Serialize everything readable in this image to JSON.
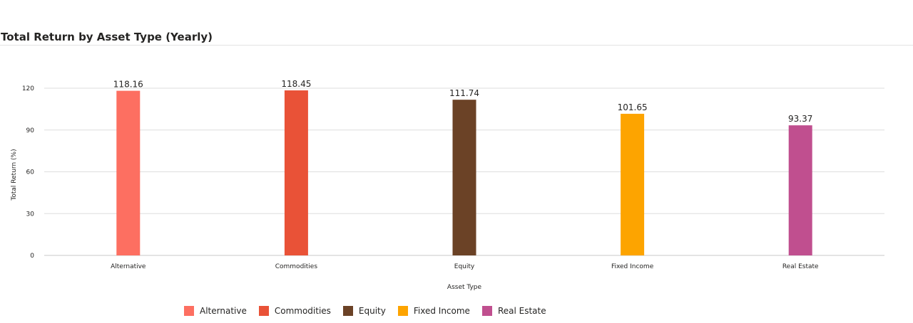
{
  "header": {
    "title": "Total Return by Asset Type (Yearly)"
  },
  "chart_data": {
    "type": "bar",
    "title": "Total Return by Asset Type (Yearly)",
    "xlabel": "Asset Type",
    "ylabel": "Total Return (%)",
    "ylim": [
      0,
      120
    ],
    "yticks": [
      0,
      30,
      60,
      90,
      120
    ],
    "grid": true,
    "legend_position": "bottom",
    "categories": [
      "Alternative",
      "Commodities",
      "Equity",
      "Fixed Income",
      "Real Estate"
    ],
    "values": [
      118.16,
      118.45,
      111.74,
      101.65,
      93.37
    ],
    "data_labels": [
      "118.16",
      "118.45",
      "111.74",
      "101.65",
      "93.37"
    ],
    "colors": [
      "#fd6f61",
      "#e95237",
      "#6b4226",
      "#fda400",
      "#c04f8f"
    ]
  }
}
